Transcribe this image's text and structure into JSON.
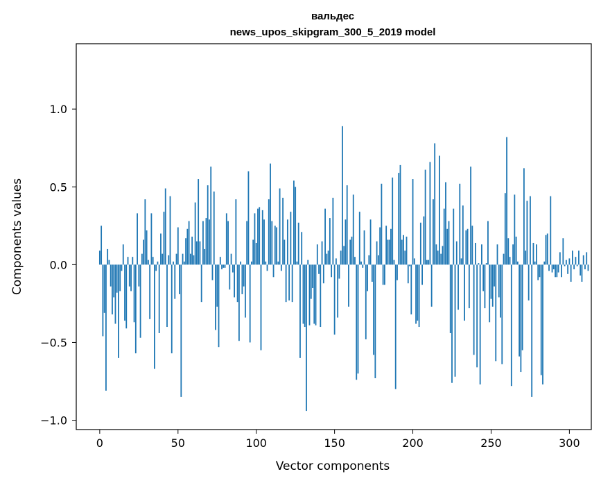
{
  "chart_data": {
    "type": "bar",
    "title": "вальдес",
    "subtitle": "news_upos_skipgram_300_5_2019 model",
    "xlabel": "Vector components",
    "ylabel": "Components values",
    "xlim": [
      -15,
      314
    ],
    "ylim": [
      -1.06,
      1.42
    ],
    "xticks": [
      0,
      50,
      100,
      150,
      200,
      250,
      300
    ],
    "xtick_labels": [
      "0",
      "50",
      "100",
      "150",
      "200",
      "250",
      "300"
    ],
    "yticks": [
      -1.0,
      -0.5,
      0.0,
      0.5,
      1.0
    ],
    "ytick_labels": [
      "−1.0",
      "−0.5",
      "0.0",
      "0.5",
      "1.0"
    ],
    "grid": false,
    "bar_color": "#1f77b4",
    "values": [
      0.09,
      0.25,
      -0.46,
      -0.31,
      -0.81,
      0.1,
      0.03,
      -0.14,
      -0.32,
      -0.21,
      -0.38,
      -0.18,
      -0.6,
      -0.17,
      -0.04,
      0.13,
      -0.36,
      -0.41,
      0.05,
      -0.14,
      -0.17,
      0.05,
      -0.37,
      -0.57,
      0.33,
      -0.14,
      -0.47,
      0.07,
      0.16,
      0.42,
      0.22,
      0.03,
      -0.35,
      0.33,
      0.05,
      -0.67,
      -0.04,
      0.02,
      -0.44,
      0.2,
      0.07,
      0.34,
      0.49,
      -0.4,
      0.06,
      0.44,
      -0.57,
      0.02,
      -0.22,
      0.07,
      0.24,
      -0.19,
      -0.85,
      0.07,
      0.02,
      0.17,
      0.23,
      0.28,
      0.07,
      0.18,
      0.06,
      0.4,
      0.15,
      0.55,
      0.15,
      -0.24,
      0.28,
      0.1,
      0.3,
      0.51,
      0.29,
      0.63,
      -0.1,
      0.47,
      -0.42,
      -0.27,
      -0.53,
      0.05,
      -0.03,
      -0.02,
      -0.02,
      0.33,
      0.28,
      -0.16,
      0.07,
      -0.05,
      -0.21,
      0.42,
      -0.24,
      -0.49,
      0.02,
      -0.19,
      -0.14,
      -0.34,
      0.28,
      0.6,
      -0.5,
      0.02,
      0.16,
      0.33,
      0.14,
      0.36,
      0.37,
      -0.55,
      0.35,
      0.29,
      0.02,
      -0.04,
      0.42,
      0.65,
      0.28,
      -0.08,
      0.25,
      0.24,
      0.02,
      0.49,
      -0.04,
      0.43,
      0.16,
      -0.24,
      0.29,
      -0.23,
      0.34,
      -0.24,
      0.54,
      0.5,
      0.02,
      0.27,
      -0.6,
      0.21,
      -0.38,
      -0.4,
      -0.94,
      0.03,
      -0.39,
      -0.22,
      -0.15,
      -0.38,
      -0.39,
      0.13,
      -0.06,
      -0.4,
      0.15,
      -0.12,
      0.36,
      0.07,
      0.09,
      0.3,
      -0.08,
      0.43,
      -0.45,
      0.04,
      -0.34,
      -0.09,
      0.09,
      0.89,
      0.12,
      0.29,
      0.51,
      -0.27,
      0.16,
      0.18,
      0.45,
      0.05,
      -0.74,
      -0.7,
      0.34,
      0.02,
      -0.02,
      0.22,
      -0.48,
      -0.17,
      0.06,
      0.29,
      -0.11,
      -0.58,
      -0.73,
      0.15,
      0.06,
      0.24,
      0.52,
      -0.13,
      -0.13,
      0.25,
      0.16,
      0.16,
      0.23,
      0.56,
      0.03,
      -0.8,
      -0.1,
      0.59,
      0.64,
      0.16,
      0.19,
      0.09,
      0.18,
      -0.12,
      -0.01,
      -0.32,
      0.55,
      0.04,
      -0.38,
      -0.36,
      -0.4,
      0.27,
      -0.13,
      0.31,
      0.61,
      0.03,
      0.03,
      0.66,
      -0.27,
      0.42,
      0.78,
      0.13,
      0.09,
      0.7,
      0.07,
      0.12,
      0.36,
      0.53,
      0.23,
      0.28,
      -0.44,
      -0.76,
      0.36,
      -0.72,
      0.15,
      -0.29,
      0.52,
      0.04,
      0.38,
      -0.36,
      0.22,
      0.23,
      -0.28,
      0.63,
      0.25,
      -0.58,
      0.14,
      -0.66,
      0.01,
      -0.77,
      0.13,
      -0.17,
      -0.28,
      0.01,
      0.28,
      -0.37,
      -0.22,
      -0.27,
      -0.14,
      -0.62,
      0.13,
      -0.21,
      -0.34,
      -0.64,
      0.07,
      0.46,
      0.82,
      0.17,
      0.05,
      -0.78,
      0.13,
      0.45,
      0.18,
      0.02,
      -0.59,
      -0.69,
      -0.55,
      0.62,
      0.09,
      0.41,
      -0.23,
      0.44,
      -0.85,
      0.14,
      0.02,
      0.13,
      -0.1,
      -0.08,
      -0.71,
      -0.77,
      0.02,
      0.19,
      0.2,
      -0.04,
      0.44,
      -0.05,
      -0.03,
      -0.08,
      -0.08,
      -0.05,
      0.08,
      -0.08,
      0.17,
      -0.01,
      0.03,
      -0.06,
      0.04,
      -0.11,
      0.09,
      -0.03,
      0.05,
      -0.01,
      0.09,
      -0.07,
      -0.11,
      0.06,
      -0.03,
      0.08,
      -0.04
    ]
  }
}
